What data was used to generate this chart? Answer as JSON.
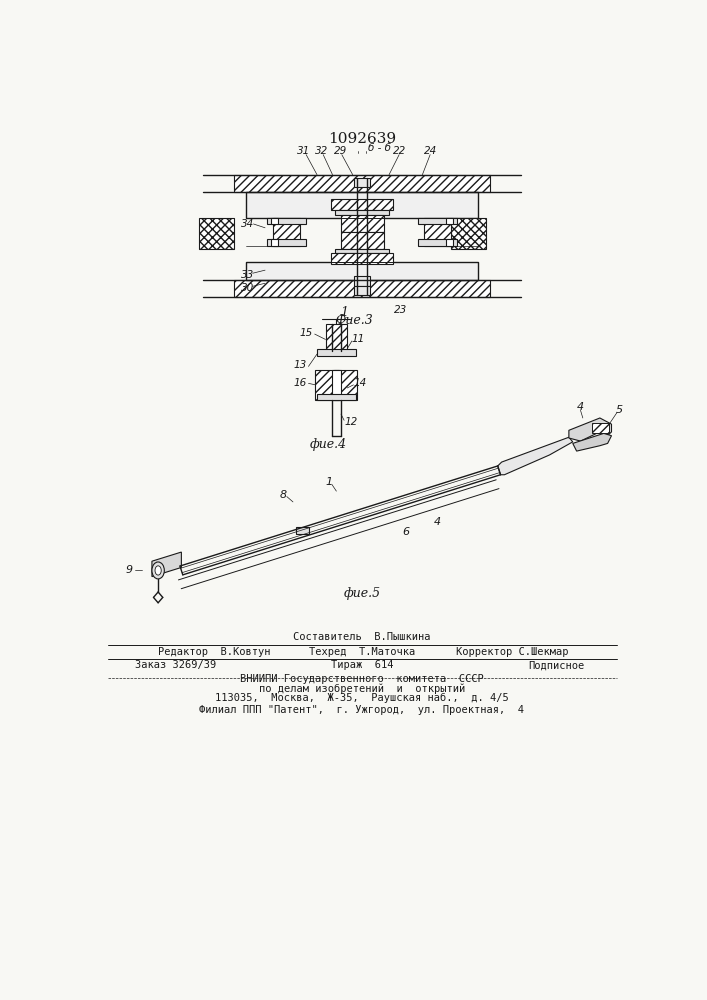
{
  "title": "1092639",
  "bg_color": "#f8f8f4",
  "fig3_caption": "Фие.3",
  "fig4_caption": "фие.4",
  "fig5_caption": "фие.5",
  "footer_line1": "Составитель  В.Пышкина",
  "footer_line2_left": "Редактор  В.Ковтун",
  "footer_line2_mid": "Техред  Т.Маточка",
  "footer_line2_right": "Корректор С.Шекмар",
  "footer_line3_left": "Заказ 3269/39",
  "footer_line3_mid": "Тираж  614",
  "footer_line3_right": "Подписное",
  "footer_line4": "ВНИИПИ Государственного  комитета  СССР",
  "footer_line5": "по делам изобретений  и  открытий",
  "footer_line6": "113035,  Москва,  Ж-35,  Раушская наб.,  д. 4/5",
  "footer_line7": "Филиал ППП \"Патент\",  г. Ужгород,  ул. Проектная,  4",
  "line_color": "#1a1a1a"
}
